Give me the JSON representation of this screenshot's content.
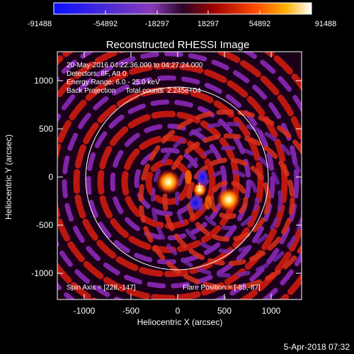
{
  "colorbar": {
    "ticks": [
      "-91488",
      "-54892",
      "-18297",
      "18297",
      "54892",
      "91488"
    ],
    "colors": {
      "neg_max": "#1a1aff",
      "neg_mid": "#7a30c8",
      "zero": "#3a0a3a",
      "pos_low": "#c80000",
      "pos_mid": "#ff7000",
      "pos_max": "#ffffff"
    }
  },
  "plot": {
    "title": "Reconstructed RHESSI Image",
    "info_lines": [
      "20-May-2016 04:22:36.000 to 04:27:24.000",
      "Detectors: 8F, Att 0",
      "Energy Range: 6.0 - 25.0 keV",
      "Back Projection     Total counts: 2.245e+04"
    ],
    "spin_axis": "Spin Axis = [228,-147]",
    "flare_position": "Flare Position = [-85,-87]",
    "x_label": "Heliocentric X (arcsec)",
    "y_label": "Heliocentric Y (arcsec)",
    "x_ticks": [
      "-1000",
      "-500",
      "0",
      "500",
      "1000"
    ],
    "y_ticks": [
      "1000",
      "500",
      "0",
      "-500",
      "-1000"
    ]
  },
  "footer": {
    "timestamp": "5-Apr-2018 07:32"
  }
}
